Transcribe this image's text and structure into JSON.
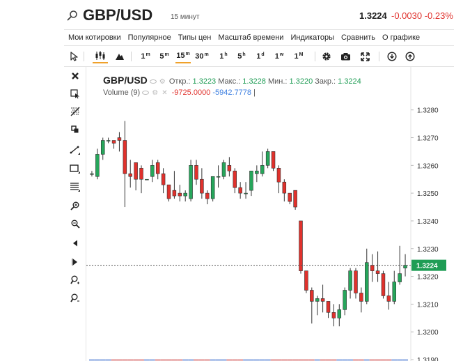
{
  "header": {
    "title": "GBP/USD",
    "timeframe": "15 минут",
    "price": "1.3224",
    "change": "-0.0030",
    "change_pct": "-0.23%"
  },
  "menu": {
    "items": [
      "Мои котировки",
      "Популярное",
      "Типы цен",
      "Масштаб времени",
      "Индикаторы",
      "Сравнить",
      "О графике"
    ]
  },
  "toolbar": {
    "intervals": [
      {
        "num": "1",
        "unit": "m"
      },
      {
        "num": "5",
        "unit": "m"
      },
      {
        "num": "15",
        "unit": "m"
      },
      {
        "num": "30",
        "unit": "m"
      },
      {
        "num": "1",
        "unit": "h"
      },
      {
        "num": "5",
        "unit": "h"
      },
      {
        "num": "1",
        "unit": "d"
      },
      {
        "num": "1",
        "unit": "w"
      },
      {
        "num": "1",
        "unit": "M"
      }
    ],
    "active_interval": "15m"
  },
  "legend": {
    "symbol": "GBP/USD",
    "open_label": "Откр.:",
    "open": "1.3223",
    "high_label": "Макс.:",
    "high": "1.3228",
    "low_label": "Мин.:",
    "low": "1.3220",
    "close_label": "Закр.:",
    "close": "1.3224",
    "volume_label": "Volume",
    "volume_period": "(9)",
    "volume_v1": "-9725.0000",
    "volume_v2": "-5942.7778",
    "volume_sep": "|"
  },
  "chart_data": {
    "type": "candlestick",
    "y_ticks": [
      "1.3280",
      "1.3270",
      "1.3260",
      "1.3250",
      "1.3240",
      "1.3230",
      "1.3220",
      "1.3210",
      "1.3200",
      "1.3190"
    ],
    "ylim": [
      1.31895,
      1.32955
    ],
    "last_price": 1.3224,
    "last_price_label": "1.3224",
    "colors": {
      "up": "#26a65b",
      "down": "#e0312c",
      "axis": "#e3e3e3",
      "price_tag": "#1f9d55"
    },
    "candles": [
      {
        "o": 1.3257,
        "h": 1.3258,
        "l": 1.3256,
        "c": 1.3257
      },
      {
        "o": 1.3256,
        "h": 1.3266,
        "l": 1.3255,
        "c": 1.3264
      },
      {
        "o": 1.3264,
        "h": 1.327,
        "l": 1.3262,
        "c": 1.3269
      },
      {
        "o": 1.3269,
        "h": 1.327,
        "l": 1.3268,
        "c": 1.3269
      },
      {
        "o": 1.3269,
        "h": 1.3269,
        "l": 1.3266,
        "c": 1.3268
      },
      {
        "o": 1.327,
        "h": 1.3272,
        "l": 1.3265,
        "c": 1.3269
      },
      {
        "o": 1.3269,
        "h": 1.3276,
        "l": 1.3245,
        "c": 1.3257
      },
      {
        "o": 1.3257,
        "h": 1.3262,
        "l": 1.3252,
        "c": 1.3256
      },
      {
        "o": 1.3261,
        "h": 1.3261,
        "l": 1.3251,
        "c": 1.3255
      },
      {
        "o": 1.3259,
        "h": 1.326,
        "l": 1.325,
        "c": 1.3255
      },
      {
        "o": 1.3255,
        "h": 1.3255,
        "l": 1.3255,
        "c": 1.3255
      },
      {
        "o": 1.3256,
        "h": 1.3262,
        "l": 1.3254,
        "c": 1.326
      },
      {
        "o": 1.3261,
        "h": 1.3262,
        "l": 1.3255,
        "c": 1.3257
      },
      {
        "o": 1.3257,
        "h": 1.3259,
        "l": 1.325,
        "c": 1.3253
      },
      {
        "o": 1.3253,
        "h": 1.3253,
        "l": 1.3247,
        "c": 1.3248
      },
      {
        "o": 1.3251,
        "h": 1.3258,
        "l": 1.3248,
        "c": 1.3249
      },
      {
        "o": 1.325,
        "h": 1.3253,
        "l": 1.3247,
        "c": 1.3249
      },
      {
        "o": 1.3249,
        "h": 1.3251,
        "l": 1.3247,
        "c": 1.325
      },
      {
        "o": 1.3248,
        "h": 1.3262,
        "l": 1.3247,
        "c": 1.326
      },
      {
        "o": 1.326,
        "h": 1.3262,
        "l": 1.3253,
        "c": 1.3255
      },
      {
        "o": 1.3255,
        "h": 1.3259,
        "l": 1.3248,
        "c": 1.325
      },
      {
        "o": 1.325,
        "h": 1.3251,
        "l": 1.3246,
        "c": 1.3248
      },
      {
        "o": 1.3248,
        "h": 1.3256,
        "l": 1.3247,
        "c": 1.3256
      },
      {
        "o": 1.3256,
        "h": 1.326,
        "l": 1.3252,
        "c": 1.3256
      },
      {
        "o": 1.3256,
        "h": 1.3262,
        "l": 1.3255,
        "c": 1.3261
      },
      {
        "o": 1.326,
        "h": 1.3263,
        "l": 1.3256,
        "c": 1.3258
      },
      {
        "o": 1.3258,
        "h": 1.3259,
        "l": 1.325,
        "c": 1.3252
      },
      {
        "o": 1.3252,
        "h": 1.3254,
        "l": 1.3248,
        "c": 1.325
      },
      {
        "o": 1.325,
        "h": 1.3254,
        "l": 1.3248,
        "c": 1.325
      },
      {
        "o": 1.3251,
        "h": 1.3258,
        "l": 1.3249,
        "c": 1.3258
      },
      {
        "o": 1.3257,
        "h": 1.326,
        "l": 1.3254,
        "c": 1.3258
      },
      {
        "o": 1.3257,
        "h": 1.3265,
        "l": 1.3256,
        "c": 1.326
      },
      {
        "o": 1.326,
        "h": 1.3266,
        "l": 1.3259,
        "c": 1.3265
      },
      {
        "o": 1.3265,
        "h": 1.3265,
        "l": 1.3258,
        "c": 1.3259
      },
      {
        "o": 1.3259,
        "h": 1.326,
        "l": 1.325,
        "c": 1.3254
      },
      {
        "o": 1.3254,
        "h": 1.3255,
        "l": 1.3247,
        "c": 1.325
      },
      {
        "o": 1.325,
        "h": 1.325,
        "l": 1.3246,
        "c": 1.3247
      },
      {
        "o": 1.3251,
        "h": 1.3251,
        "l": 1.3244,
        "c": 1.3245
      },
      {
        "o": 1.324,
        "h": 1.324,
        "l": 1.3221,
        "c": 1.3222
      },
      {
        "o": 1.3222,
        "h": 1.3222,
        "l": 1.3214,
        "c": 1.3215
      },
      {
        "o": 1.3215,
        "h": 1.3216,
        "l": 1.3203,
        "c": 1.3211
      },
      {
        "o": 1.3211,
        "h": 1.3213,
        "l": 1.3206,
        "c": 1.3212
      },
      {
        "o": 1.3212,
        "h": 1.3217,
        "l": 1.3207,
        "c": 1.3211
      },
      {
        "o": 1.3211,
        "h": 1.3211,
        "l": 1.3205,
        "c": 1.3207
      },
      {
        "o": 1.3207,
        "h": 1.321,
        "l": 1.3202,
        "c": 1.3205
      },
      {
        "o": 1.3205,
        "h": 1.321,
        "l": 1.3202,
        "c": 1.3208
      },
      {
        "o": 1.3208,
        "h": 1.3216,
        "l": 1.3206,
        "c": 1.3215
      },
      {
        "o": 1.3215,
        "h": 1.3223,
        "l": 1.3212,
        "c": 1.3222
      },
      {
        "o": 1.3222,
        "h": 1.3223,
        "l": 1.3212,
        "c": 1.3214
      },
      {
        "o": 1.3214,
        "h": 1.3216,
        "l": 1.3207,
        "c": 1.3211
      },
      {
        "o": 1.3211,
        "h": 1.323,
        "l": 1.321,
        "c": 1.3225
      },
      {
        "o": 1.3224,
        "h": 1.3228,
        "l": 1.3218,
        "c": 1.3222
      },
      {
        "o": 1.3222,
        "h": 1.3229,
        "l": 1.3218,
        "c": 1.3221
      },
      {
        "o": 1.3221,
        "h": 1.3222,
        "l": 1.3212,
        "c": 1.3213
      },
      {
        "o": 1.3213,
        "h": 1.3218,
        "l": 1.3208,
        "c": 1.3211
      },
      {
        "o": 1.3211,
        "h": 1.3222,
        "l": 1.321,
        "c": 1.3218
      },
      {
        "o": 1.3218,
        "h": 1.3231,
        "l": 1.3217,
        "c": 1.3221
      },
      {
        "o": 1.3223,
        "h": 1.3228,
        "l": 1.322,
        "c": 1.3224
      }
    ]
  }
}
